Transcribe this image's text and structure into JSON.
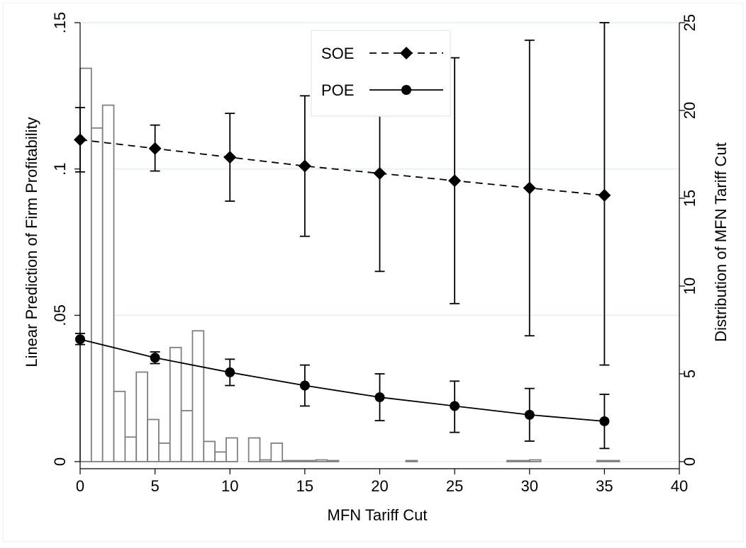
{
  "chart_data": {
    "type": "line",
    "xlabel": "MFN Tariff Cut",
    "ylabel": "Linear Prediction of Firm Profitability",
    "y2label": "Distribution of MFN Tariff Cut",
    "xlim": [
      0,
      40
    ],
    "ylim": [
      0,
      0.15
    ],
    "y2lim": [
      0,
      25
    ],
    "x_ticks": [
      0,
      5,
      10,
      15,
      20,
      25,
      30,
      35,
      40
    ],
    "y_ticks": [
      0,
      0.05,
      0.1,
      0.15
    ],
    "y_tick_labels": [
      "0",
      ".05",
      ".1",
      ".15"
    ],
    "y2_ticks": [
      0,
      5,
      10,
      15,
      20,
      25
    ],
    "grid": true,
    "legend_position": "top-center",
    "colors": {
      "line": "#000000",
      "bars": "#808080",
      "grid": "#e3eef2",
      "frame": "#e8eef0"
    },
    "series": [
      {
        "name": "SOE",
        "style": "dashed",
        "marker": "diamond",
        "x": [
          0,
          5,
          10,
          15,
          20,
          25,
          30,
          35
        ],
        "y": [
          0.11,
          0.107,
          0.104,
          0.101,
          0.0985,
          0.096,
          0.0935,
          0.091
        ],
        "ci_low": [
          0.099,
          0.0993,
          0.089,
          0.077,
          0.065,
          0.054,
          0.043,
          0.033
        ],
        "ci_high": [
          0.121,
          0.115,
          0.119,
          0.125,
          0.132,
          0.138,
          0.144,
          0.15
        ]
      },
      {
        "name": "POE",
        "style": "solid",
        "marker": "circle",
        "x": [
          0,
          5,
          10,
          15,
          20,
          25,
          30,
          35
        ],
        "y": [
          0.0418,
          0.0355,
          0.0305,
          0.026,
          0.022,
          0.019,
          0.016,
          0.0138
        ],
        "ci_low": [
          0.04,
          0.0335,
          0.026,
          0.019,
          0.014,
          0.01,
          0.007,
          0.0045
        ],
        "ci_high": [
          0.0438,
          0.0375,
          0.035,
          0.033,
          0.03,
          0.0275,
          0.025,
          0.023
        ]
      }
    ],
    "histogram": {
      "bin_width": 0.75,
      "bins": [
        {
          "x": 0,
          "value": 22.4
        },
        {
          "x": 0.75,
          "value": 19.0
        },
        {
          "x": 1.5,
          "value": 20.3
        },
        {
          "x": 2.25,
          "value": 4.0
        },
        {
          "x": 3.0,
          "value": 1.4
        },
        {
          "x": 3.75,
          "value": 5.1
        },
        {
          "x": 4.5,
          "value": 2.4
        },
        {
          "x": 5.25,
          "value": 1.05
        },
        {
          "x": 6.0,
          "value": 6.5
        },
        {
          "x": 6.75,
          "value": 2.9
        },
        {
          "x": 7.5,
          "value": 7.45
        },
        {
          "x": 8.25,
          "value": 1.15
        },
        {
          "x": 9.0,
          "value": 0.55
        },
        {
          "x": 9.75,
          "value": 1.35
        },
        {
          "x": 11.25,
          "value": 1.35
        },
        {
          "x": 12.0,
          "value": 0.1
        },
        {
          "x": 12.75,
          "value": 1.05
        },
        {
          "x": 13.5,
          "value": 0.05
        },
        {
          "x": 14.25,
          "value": 0.05
        },
        {
          "x": 15.0,
          "value": 0.05
        },
        {
          "x": 15.75,
          "value": 0.1
        },
        {
          "x": 16.5,
          "value": 0.05
        },
        {
          "x": 21.75,
          "value": 0.05
        },
        {
          "x": 28.5,
          "value": 0.05
        },
        {
          "x": 29.25,
          "value": 0.05
        },
        {
          "x": 30.0,
          "value": 0.1
        },
        {
          "x": 34.5,
          "value": 0.05
        },
        {
          "x": 35.25,
          "value": 0.05
        }
      ]
    }
  }
}
